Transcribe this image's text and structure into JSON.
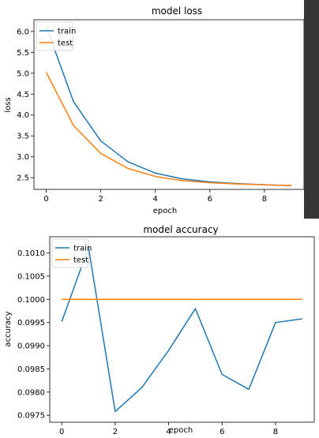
{
  "chart_data": [
    {
      "type": "line",
      "title": "model loss",
      "xlabel": "epoch",
      "ylabel": "loss",
      "x": [
        0,
        1,
        2,
        3,
        4,
        5,
        6,
        7,
        8,
        9
      ],
      "xlim": [
        -0.45,
        9.45
      ],
      "ylim": [
        2.22,
        6.28
      ],
      "xticks": [
        0,
        2,
        4,
        6,
        8
      ],
      "yticks": [
        2.5,
        3.0,
        3.5,
        4.0,
        4.5,
        5.0,
        5.5,
        6.0
      ],
      "ytick_labels": [
        "2.5",
        "3.0",
        "3.5",
        "4.0",
        "4.5",
        "5.0",
        "5.5",
        "6.0"
      ],
      "legend_position": "top-left",
      "series": [
        {
          "name": "train",
          "color": "#1f77b4",
          "values": [
            6.12,
            4.32,
            3.38,
            2.88,
            2.61,
            2.47,
            2.4,
            2.36,
            2.33,
            2.31
          ]
        },
        {
          "name": "test",
          "color": "#ff7f0e",
          "values": [
            5.02,
            3.75,
            3.08,
            2.72,
            2.53,
            2.43,
            2.38,
            2.35,
            2.33,
            2.31
          ]
        }
      ]
    },
    {
      "type": "line",
      "title": "model accuracy",
      "xlabel": "epoch",
      "ylabel": "accuracy",
      "x": [
        0,
        1,
        2,
        3,
        4,
        5,
        6,
        7,
        8,
        9
      ],
      "xlim": [
        -0.45,
        9.45
      ],
      "ylim": [
        0.09735,
        0.10135
      ],
      "xticks": [
        0,
        2,
        4,
        6,
        8
      ],
      "yticks": [
        0.0975,
        0.098,
        0.0985,
        0.099,
        0.0995,
        0.1,
        0.1005,
        0.101
      ],
      "ytick_labels": [
        "0.0975",
        "0.0980",
        "0.0985",
        "0.0990",
        "0.0995",
        "0.1000",
        "0.1005",
        "0.1010"
      ],
      "legend_position": "top-left",
      "series": [
        {
          "name": "train",
          "color": "#1f77b4",
          "values": [
            0.09952,
            0.10112,
            0.09758,
            0.0981,
            0.0989,
            0.0998,
            0.09838,
            0.09806,
            0.0995,
            0.09958
          ]
        },
        {
          "name": "test",
          "color": "#ff7f0e",
          "values": [
            0.1,
            0.1,
            0.1,
            0.1,
            0.1,
            0.1,
            0.1,
            0.1,
            0.1,
            0.1
          ]
        }
      ]
    }
  ]
}
